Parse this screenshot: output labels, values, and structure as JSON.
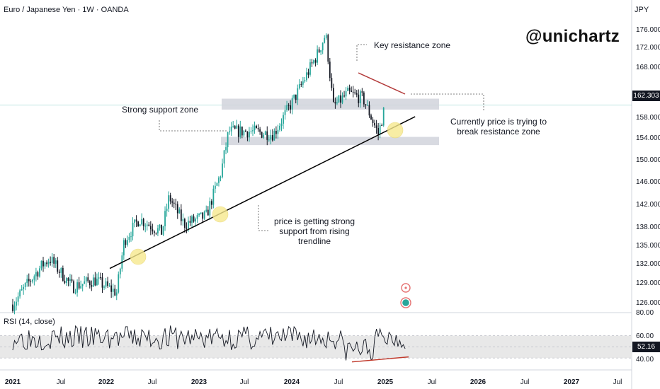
{
  "header": {
    "symbol_line": "Euro / Japanese Yen · 1W · OANDA",
    "currency": "JPY",
    "brand": "@unichartz"
  },
  "rsi": {
    "label": "RSI (14, close)",
    "value_tag": "52.16",
    "levels": [
      "80.00",
      "60.00",
      "40.00"
    ],
    "band_low": 40,
    "band_high": 60,
    "min": 30,
    "max": 80,
    "divergence_color": "#c0392b"
  },
  "annotations": {
    "key_resistance": "Key resistance zone",
    "strong_support": "Strong support zone",
    "currently_l1": "Currently price is trying  to",
    "currently_l2": "break resistance zone",
    "trendline_l1": "price is getting strong",
    "trendline_l2": "support from rising",
    "trendline_l3": "trendline"
  },
  "price_axis": {
    "current_price": "162.303",
    "ticks": [
      "176.000",
      "172.000",
      "168.000",
      "158.000",
      "154.000",
      "150.000",
      "146.000",
      "142.000",
      "138.000",
      "135.000",
      "132.000",
      "129.000",
      "126.000"
    ]
  },
  "time_axis": {
    "labels": [
      {
        "text": "2021",
        "bold": true
      },
      {
        "text": "Jul",
        "bold": false
      },
      {
        "text": "2022",
        "bold": true
      },
      {
        "text": "Jul",
        "bold": false
      },
      {
        "text": "2023",
        "bold": true
      },
      {
        "text": "Jul",
        "bold": false
      },
      {
        "text": "2024",
        "bold": true
      },
      {
        "text": "Jul",
        "bold": false
      },
      {
        "text": "2025",
        "bold": true
      },
      {
        "text": "Jul",
        "bold": false
      },
      {
        "text": "2026",
        "bold": true
      },
      {
        "text": "Jul",
        "bold": false
      },
      {
        "text": "2027",
        "bold": true
      },
      {
        "text": "Jul",
        "bold": false
      }
    ]
  },
  "colors": {
    "up": "#26a69a",
    "down": "#131722",
    "zone": "#d1d4dc",
    "resistance_line": "#b33a3a",
    "trendline": "#000000",
    "highlight": "#f7e98e"
  },
  "chart_data": {
    "type": "candlestick",
    "instrument": "Euro / Japanese Yen",
    "interval": "1W",
    "source": "OANDA",
    "ylim": [
      124,
      179
    ],
    "current_price": 162.303,
    "key_resistance_zone": [
      161.5,
      163.5
    ],
    "strong_support_zone": [
      155,
      156.5
    ],
    "rising_trendline": [
      {
        "date": "2022-02",
        "price": 132.4
      },
      {
        "date": "2025-07",
        "price": 160.2
      }
    ],
    "price_path": [
      {
        "date": "2021-01",
        "price": 125.8
      },
      {
        "date": "2021-03",
        "price": 129.5
      },
      {
        "date": "2021-05",
        "price": 133.0
      },
      {
        "date": "2021-06",
        "price": 134.2
      },
      {
        "date": "2021-09",
        "price": 129.0
      },
      {
        "date": "2021-12",
        "price": 130.3
      },
      {
        "date": "2022-03",
        "price": 128.0
      },
      {
        "date": "2022-04",
        "price": 137.5
      },
      {
        "date": "2022-06",
        "price": 141.5
      },
      {
        "date": "2022-09",
        "price": 139.0
      },
      {
        "date": "2022-10",
        "price": 145.5
      },
      {
        "date": "2022-12",
        "price": 140.5
      },
      {
        "date": "2023-03",
        "price": 142.0
      },
      {
        "date": "2023-05",
        "price": 150.0
      },
      {
        "date": "2023-06",
        "price": 157.5
      },
      {
        "date": "2023-09",
        "price": 157.5
      },
      {
        "date": "2023-12",
        "price": 157.0
      },
      {
        "date": "2024-03",
        "price": 164.0
      },
      {
        "date": "2024-06",
        "price": 172.0
      },
      {
        "date": "2024-07",
        "price": 175.4
      },
      {
        "date": "2024-08",
        "price": 162.0
      },
      {
        "date": "2024-10",
        "price": 164.5
      },
      {
        "date": "2024-12",
        "price": 163.5
      },
      {
        "date": "2025-02",
        "price": 157.0
      },
      {
        "date": "2025-03",
        "price": 162.3
      }
    ]
  }
}
